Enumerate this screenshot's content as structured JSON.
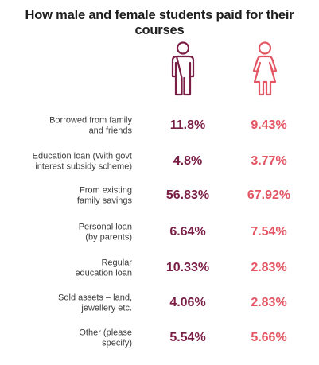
{
  "chart_data": {
    "type": "table",
    "title": "How male and female students paid for their courses",
    "categories": [
      "Borrowed from family\nand friends",
      "Education loan (With govt\ninterest subsidy scheme)",
      "From existing\nfamily savings",
      "Personal loan\n(by parents)",
      "Regular\neducation loan",
      "Sold assets – land,\njewellery etc.",
      "Other (please\nspecify)"
    ],
    "series": [
      {
        "icon": "male-figure-icon",
        "color": "#7a1e45",
        "values": [
          11.8,
          4.8,
          56.83,
          6.64,
          10.33,
          4.06,
          5.54
        ],
        "labels": [
          "11.8%",
          "4.8%",
          "56.83%",
          "6.64%",
          "10.33%",
          "4.06%",
          "5.54%"
        ]
      },
      {
        "icon": "female-figure-icon",
        "color": "#e45664",
        "values": [
          9.43,
          3.77,
          67.92,
          7.54,
          2.83,
          2.83,
          5.66
        ],
        "labels": [
          "9.43%",
          "3.77%",
          "67.92%",
          "7.54%",
          "2.83%",
          "2.83%",
          "5.66%"
        ]
      }
    ]
  }
}
